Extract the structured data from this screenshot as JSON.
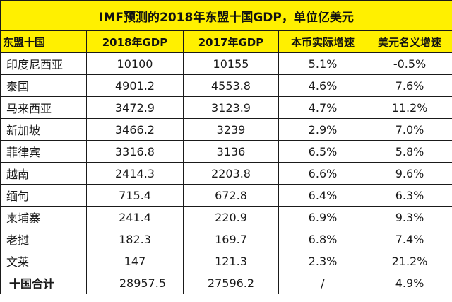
{
  "title": "IMF预测的2018年东盟十国GDP，单位亿美元",
  "columns": [
    "东盟十国",
    "2018年GDP",
    "2017年GDP",
    "本币实际增速",
    "美元名义增速"
  ],
  "rows": [
    [
      "印度尼西亚",
      "10100",
      "10155",
      "5.1%",
      "-0.5%"
    ],
    [
      "泰国",
      "4901.2",
      "4553.8",
      "4.6%",
      "7.6%"
    ],
    [
      "马来西亚",
      "3472.9",
      "3123.9",
      "4.7%",
      "11.2%"
    ],
    [
      "新加坡",
      "3466.2",
      "3239",
      "2.9%",
      "7.0%"
    ],
    [
      "菲律宾",
      "3316.8",
      "3136",
      "6.5%",
      "5.8%"
    ],
    [
      "越南",
      "2414.3",
      "2203.8",
      "6.6%",
      "9.6%"
    ],
    [
      "缅甸",
      "715.4",
      "672.8",
      "6.4%",
      "6.3%"
    ],
    [
      "柬埔寨",
      "241.4",
      "220.9",
      "6.9%",
      "9.3%"
    ],
    [
      "老挝",
      "182.3",
      "169.7",
      "6.8%",
      "7.4%"
    ],
    [
      "文莱",
      "147",
      "121.3",
      "2.3%",
      "21.2%"
    ]
  ],
  "total": [
    "十国合计",
    "28957.5",
    "27596.2",
    "/",
    "4.9%"
  ],
  "colors": {
    "header_bg": "#fff000",
    "border": "#1a1a1a",
    "text": "#1a1a1a"
  }
}
